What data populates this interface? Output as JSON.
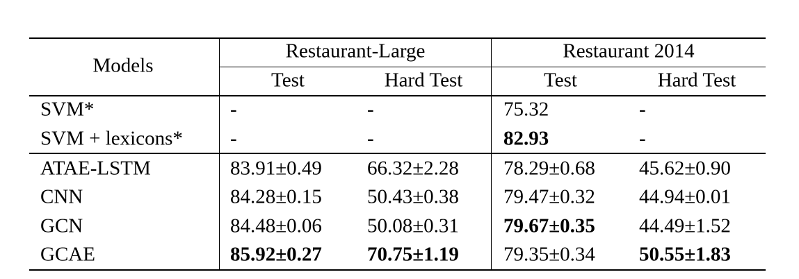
{
  "table": {
    "header": {
      "models": "Models",
      "groups": [
        "Restaurant-Large",
        "Restaurant 2014"
      ],
      "columns": [
        "Test",
        "Hard Test",
        "Test",
        "Hard Test"
      ]
    },
    "rows": [
      [
        "SVM*",
        "-",
        "-",
        "75.32",
        "-"
      ],
      [
        "SVM + lexicons*",
        "-",
        "-",
        "82.93",
        "-"
      ],
      [
        "ATAE-LSTM",
        "83.91±0.49",
        "66.32±2.28",
        "78.29±0.68",
        "45.62±0.90"
      ],
      [
        "CNN",
        "84.28±0.15",
        "50.43±0.38",
        "79.47±0.32",
        "44.94±0.01"
      ],
      [
        "GCN",
        "84.48±0.06",
        "50.08±0.31",
        "79.67±0.35",
        "44.49±1.52"
      ],
      [
        "GCAE",
        "85.92±0.27",
        "70.75±1.19",
        "79.35±0.34",
        "50.55±1.83"
      ]
    ],
    "bold": [
      [
        1,
        3
      ],
      [
        4,
        3
      ],
      [
        5,
        1
      ],
      [
        5,
        2
      ],
      [
        5,
        4
      ]
    ]
  }
}
